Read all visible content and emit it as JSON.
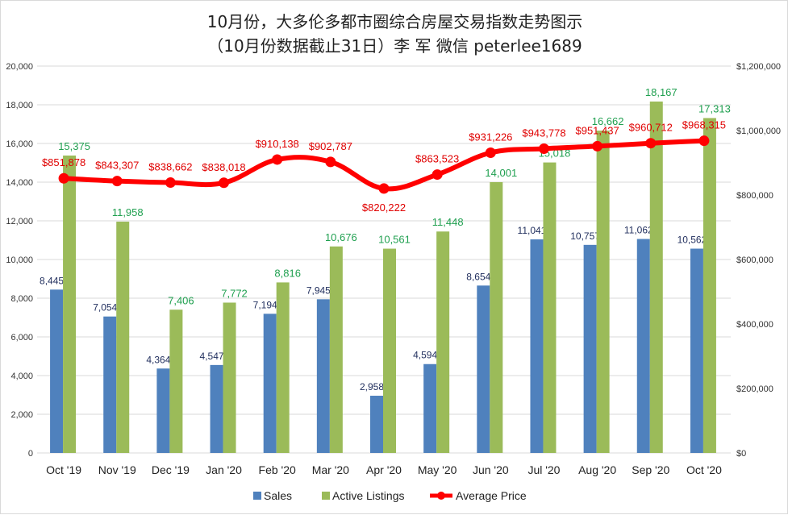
{
  "chart_data": {
    "type": "bar",
    "title": "10月份，大多伦多都市圈综合房屋交易指数走势图示",
    "subtitle": "（10月份数据截止31日）李 军  微信  peterlee1689",
    "categories": [
      "Oct '19",
      "Nov '19",
      "Dec '19",
      "Jan '20",
      "Feb '20",
      "Mar '20",
      "Apr '20",
      "May '20",
      "Jun '20",
      "Jul '20",
      "Aug '20",
      "Sep '20",
      "Oct '20"
    ],
    "series": [
      {
        "name": "Sales",
        "type": "bar",
        "axis": "left",
        "color": "#4f81bd",
        "label_color": "#1f2d5c",
        "values": [
          8445,
          7054,
          4364,
          4547,
          7194,
          7945,
          2958,
          4594,
          8654,
          11041,
          10757,
          11062,
          10562
        ]
      },
      {
        "name": "Active Listings",
        "type": "bar",
        "axis": "left",
        "color": "#9bbb59",
        "label_color": "#20a050",
        "values": [
          15375,
          11958,
          7406,
          7772,
          8816,
          10676,
          10561,
          11448,
          14001,
          15018,
          16662,
          18167,
          17313
        ]
      },
      {
        "name": "Average Price",
        "type": "line",
        "axis": "right",
        "color": "#ff0000",
        "label_color": "#e00000",
        "values": [
          851878,
          843307,
          838662,
          838018,
          910138,
          902787,
          820222,
          863523,
          931226,
          943778,
          951437,
          960712,
          968315
        ]
      }
    ],
    "left_axis": {
      "range": [
        0,
        20000
      ],
      "ticks": [
        "0",
        "2,000",
        "4,000",
        "6,000",
        "8,000",
        "10,000",
        "12,000",
        "14,000",
        "16,000",
        "18,000",
        "20,000"
      ]
    },
    "right_axis": {
      "range": [
        0,
        1200000
      ],
      "ticks": [
        "$0",
        "$200,000",
        "$400,000",
        "$600,000",
        "$800,000",
        "$1,000,000",
        "$1,200,000"
      ]
    },
    "grid": true,
    "legend": "bottom"
  }
}
